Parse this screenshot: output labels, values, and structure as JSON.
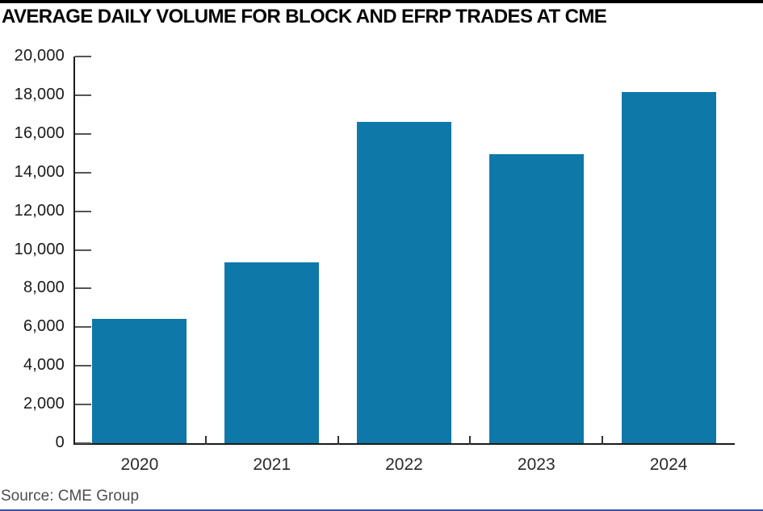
{
  "header": {
    "title": "AVERAGE DAILY VOLUME FOR BLOCK AND EFRP TRADES AT CME"
  },
  "chart_data": {
    "type": "bar",
    "title": "AVERAGE DAILY VOLUME FOR BLOCK AND EFRP TRADES AT CME",
    "categories": [
      "2020",
      "2021",
      "2022",
      "2023",
      "2024"
    ],
    "values": [
      6450,
      9350,
      16600,
      14950,
      18150
    ],
    "xlabel": "",
    "ylabel": "",
    "ylim": [
      0,
      20000
    ],
    "y_tick_step": 2000,
    "y_tick_labels": [
      "0",
      "2,000",
      "4,000",
      "6,000",
      "8,000",
      "10,000",
      "12,000",
      "14,000",
      "16,000",
      "18,000",
      "20,000"
    ],
    "grid": false,
    "legend_position": "none",
    "bar_color": "#0e78a8"
  },
  "source": {
    "label": "Source: CME Group"
  },
  "colors": {
    "bar": "#0e78a8",
    "top_rule": "#000000",
    "bottom_rule": "#3a53a4",
    "axis": "#1a1a1a",
    "tick": "#555555",
    "x_boundary_tick": "#333333"
  }
}
